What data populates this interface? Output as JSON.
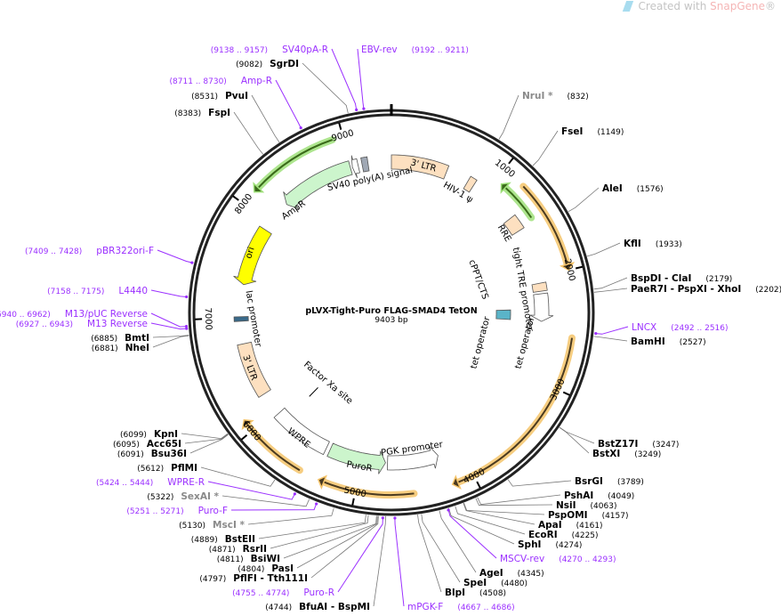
{
  "logo": {
    "prefix": "Created with ",
    "brand": "SnapGene",
    "suffix": "®"
  },
  "plasmid": {
    "name": "pLVX-Tight-Puro FLAG-SMAD4 TetON",
    "length_label": "9403 bp",
    "length": 9403
  },
  "ticks": [
    "1000",
    "2000",
    "3000",
    "4000",
    "5000",
    "6000",
    "7000",
    "8000",
    "9000"
  ],
  "sites": [
    {
      "name": "NruI *",
      "pos": "832",
      "bp": 832,
      "nonunique": true
    },
    {
      "name": "FseI",
      "pos": "1149",
      "bp": 1149
    },
    {
      "name": "AleI",
      "pos": "1576",
      "bp": 1576
    },
    {
      "name": "KflI",
      "pos": "1933",
      "bp": 1933
    },
    {
      "name": "BspDI  -  ClaI",
      "pos": "2179",
      "bp": 2179
    },
    {
      "name": "PaeR7I  -  PspXI  -  XhoI",
      "pos": "2202",
      "bp": 2202
    },
    {
      "name": "BamHI",
      "pos": "2527",
      "bp": 2527
    },
    {
      "name": "BstZ17I",
      "pos": "3247",
      "bp": 3247
    },
    {
      "name": "BstXI",
      "pos": "3249",
      "bp": 3249
    },
    {
      "name": "BsrGI",
      "pos": "3789",
      "bp": 3789
    },
    {
      "name": "PshAI",
      "pos": "4049",
      "bp": 4049
    },
    {
      "name": "NsiI",
      "pos": "4063",
      "bp": 4063
    },
    {
      "name": "PspOMI",
      "pos": "4157",
      "bp": 4157
    },
    {
      "name": "ApaI",
      "pos": "4161",
      "bp": 4161
    },
    {
      "name": "EcoRI",
      "pos": "4225",
      "bp": 4225
    },
    {
      "name": "SphI",
      "pos": "4274",
      "bp": 4274
    },
    {
      "name": "AgeI",
      "pos": "4345",
      "bp": 4345
    },
    {
      "name": "SpeI",
      "pos": "4480",
      "bp": 4480
    },
    {
      "name": "BlpI",
      "pos": "4508",
      "bp": 4508
    },
    {
      "name": "BfuAI  -  BspMI",
      "pos": "4744",
      "bp": 4744
    },
    {
      "name": "PflFI  -  Tth111I",
      "pos": "4797",
      "bp": 4797
    },
    {
      "name": "PasI",
      "pos": "4804",
      "bp": 4804
    },
    {
      "name": "BsiWI",
      "pos": "4811",
      "bp": 4811
    },
    {
      "name": "RsrII",
      "pos": "4871",
      "bp": 4871
    },
    {
      "name": "BstEII",
      "pos": "4889",
      "bp": 4889
    },
    {
      "name": "MscI *",
      "pos": "5130",
      "bp": 5130,
      "nonunique": true
    },
    {
      "name": "SexAI *",
      "pos": "5322",
      "bp": 5322,
      "nonunique": true
    },
    {
      "name": "PflMI",
      "pos": "5612",
      "bp": 5612
    },
    {
      "name": "Bsu36I",
      "pos": "6091",
      "bp": 6091
    },
    {
      "name": "Acc65I",
      "pos": "6095",
      "bp": 6095
    },
    {
      "name": "KpnI",
      "pos": "6099",
      "bp": 6099
    },
    {
      "name": "NheI",
      "pos": "6881",
      "bp": 6881
    },
    {
      "name": "BmtI",
      "pos": "6885",
      "bp": 6885
    },
    {
      "name": "FspI",
      "pos": "8383",
      "bp": 8383
    },
    {
      "name": "PvuI",
      "pos": "8531",
      "bp": 8531
    },
    {
      "name": "SgrDI",
      "pos": "9082",
      "bp": 9082
    }
  ],
  "primers": [
    {
      "name": "LNCX",
      "range": "2492 .. 2516",
      "bp": 2504
    },
    {
      "name": "MSCV-rev",
      "range": "4270 .. 4293",
      "bp": 4281
    },
    {
      "name": "mPGK-F",
      "range": "4667 .. 4686",
      "bp": 4676
    },
    {
      "name": "Puro-R",
      "range": "4755 .. 4774",
      "bp": 4764
    },
    {
      "name": "Puro-F",
      "range": "5251 .. 5271",
      "bp": 5261
    },
    {
      "name": "WPRE-R",
      "range": "5424 .. 5444",
      "bp": 5434
    },
    {
      "name": "M13 Reverse",
      "range": "6927 .. 6943",
      "bp": 6935
    },
    {
      "name": "M13/pUC Reverse",
      "range": "6940 .. 6962",
      "bp": 6951
    },
    {
      "name": "L4440",
      "range": "7158 .. 7175",
      "bp": 7166
    },
    {
      "name": "pBR322ori-F",
      "range": "7409 .. 7428",
      "bp": 7418
    },
    {
      "name": "Amp-R",
      "range": "8711 .. 8730",
      "bp": 8720
    },
    {
      "name": "SV40pA-R",
      "range": "9138 .. 9157",
      "bp": 9147
    },
    {
      "name": "EBV-rev",
      "range": "9192 .. 9211",
      "bp": 9201
    }
  ],
  "features": [
    {
      "label": "3' LTR",
      "start": 0,
      "end": 560,
      "dir": 0,
      "color": "#fde0c0"
    },
    {
      "label": "HIV-1 ψ",
      "start": 790,
      "end": 860,
      "dir": 0,
      "color": "#fde0c0"
    },
    {
      "label": "RRE",
      "start": 1350,
      "end": 1500,
      "dir": 0,
      "color": "#fde0c0"
    },
    {
      "label": "cPPT/CTS",
      "start": 2060,
      "end": 2140,
      "dir": 0,
      "color": "#fde0c0"
    },
    {
      "label": "tight TRE promoter",
      "start": 2165,
      "end": 2440,
      "dir": 1,
      "color": "#ffffff"
    },
    {
      "label": "tet operator",
      "start": 2320,
      "end": 2440,
      "dir": 0,
      "color": "#5ab4c8",
      "inner": true
    },
    {
      "label": "tet operator",
      "start": 0,
      "end": 0,
      "dir": 0,
      "color": "#5ab4c8",
      "hidden": true
    },
    {
      "label": "PGK promoter",
      "start": 4230,
      "end": 4740,
      "dir": -1,
      "color": "#ffffff"
    },
    {
      "label": "PuroR",
      "start": 4760,
      "end": 5330,
      "dir": -1,
      "color": "#ccf5cc"
    },
    {
      "label": "WPRE",
      "start": 5370,
      "end": 5960,
      "dir": 0,
      "color": "#ffffff"
    },
    {
      "label": "Factor Xa site",
      "start": 5860,
      "end": 5880,
      "dir": 0,
      "color": "#000000",
      "inner": true
    },
    {
      "label": "3' LTR",
      "start": 6200,
      "end": 6740,
      "dir": 0,
      "color": "#fde0c0"
    },
    {
      "label": "lac promoter",
      "start": 6965,
      "end": 7010,
      "dir": 0,
      "color": "#3a6a8a"
    },
    {
      "label": "ori",
      "start": 7330,
      "end": 7920,
      "dir": -1,
      "color": "#ffff00"
    },
    {
      "label": "AmpR",
      "start": 8250,
      "end": 8990,
      "dir": -1,
      "color": "#ccf5cc"
    },
    {
      "label": "SV40 poly(A) signal",
      "start": 9010,
      "end": 9070,
      "dir": -1,
      "color": "#ffffff"
    },
    {
      "label": "",
      "start": 9110,
      "end": 9170,
      "dir": 0,
      "color": "#a0a8b4"
    }
  ],
  "orfs": [
    {
      "start": 1210,
      "end": 2000,
      "dir": 1,
      "color": "#f5c46a"
    },
    {
      "start": 1060,
      "end": 1460,
      "dir": -1,
      "color": "#9fe07a"
    },
    {
      "start": 2560,
      "end": 4190,
      "dir": 1,
      "color": "#f5c46a"
    },
    {
      "start": 4515,
      "end": 5318,
      "dir": 1,
      "color": "#f5c46a"
    },
    {
      "start": 5490,
      "end": 6110,
      "dir": 1,
      "color": "#f5c46a"
    },
    {
      "start": 8130,
      "end": 8910,
      "dir": -1,
      "color": "#9fe07a"
    }
  ],
  "colors": {
    "primer": "#9b30ff",
    "backbone": "#222222",
    "nonunique_site": "#8a8a8a"
  }
}
